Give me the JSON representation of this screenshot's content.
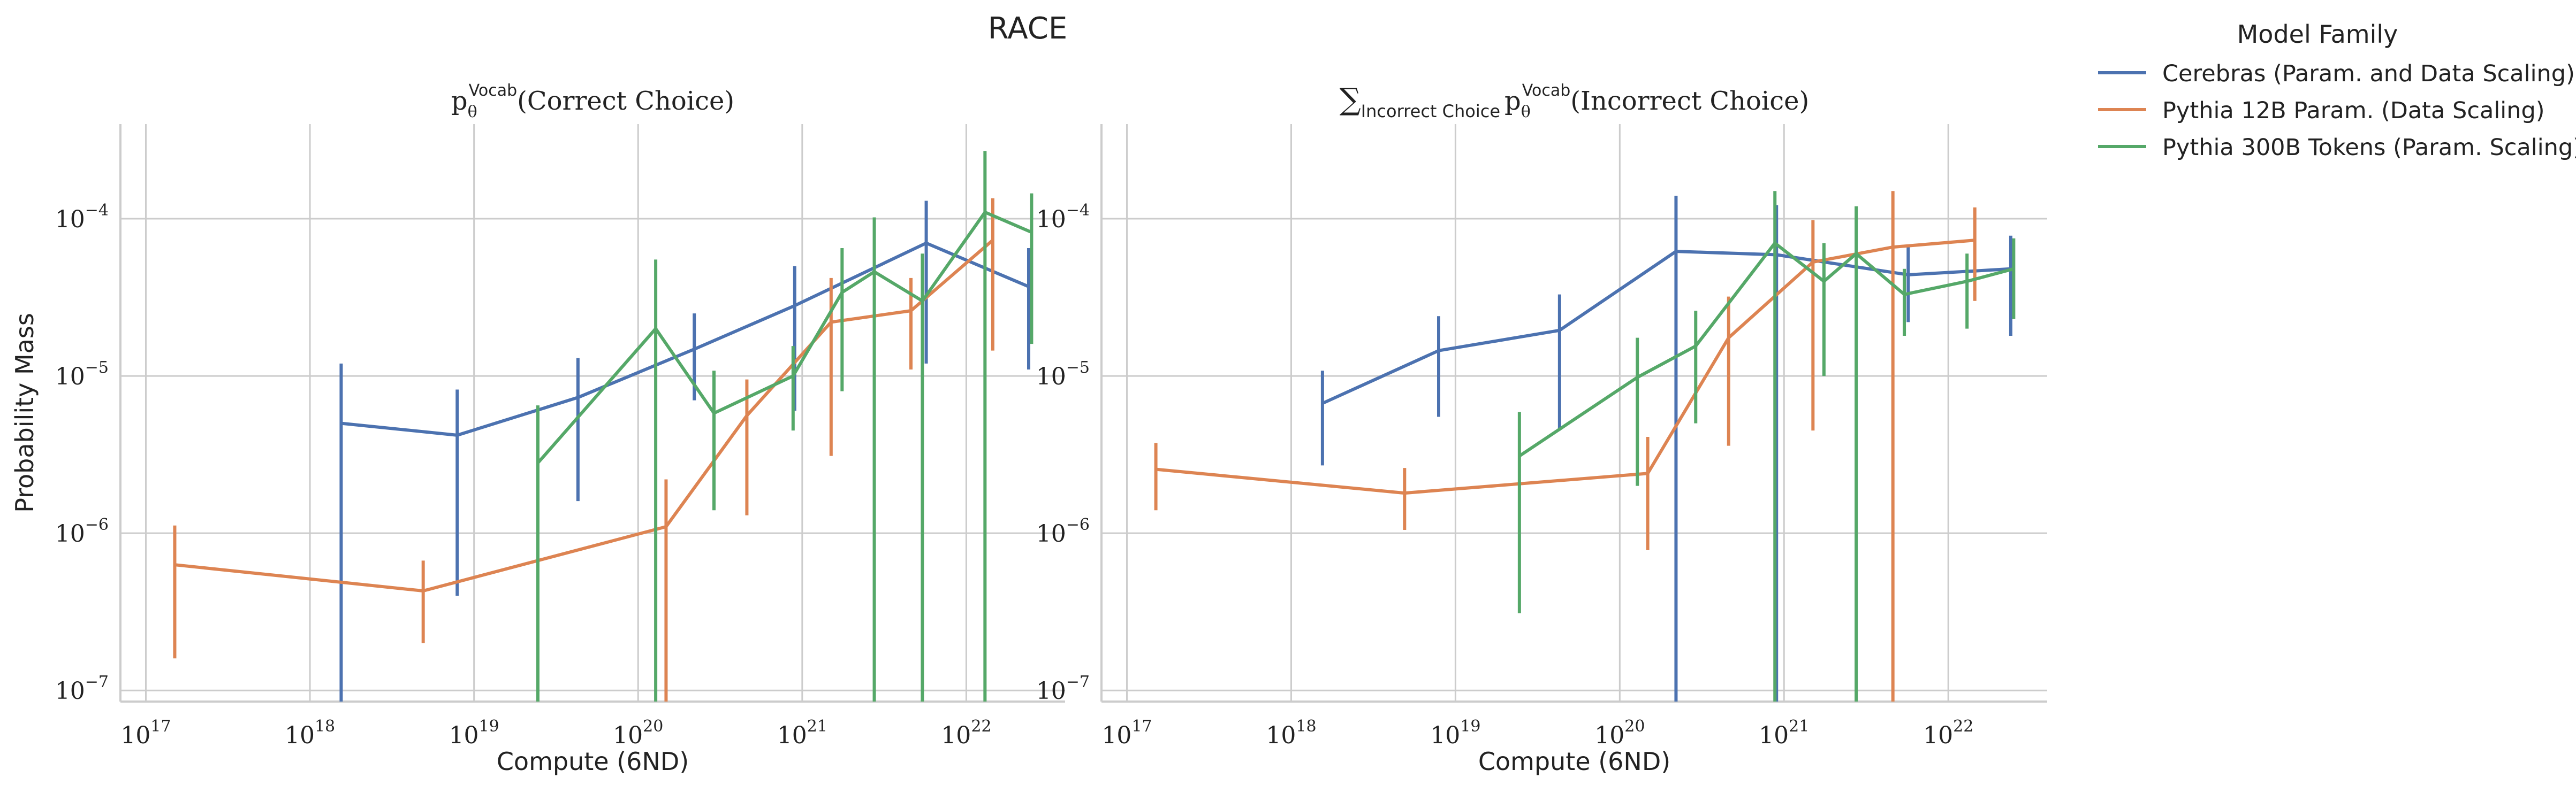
{
  "figure": {
    "title": "RACE"
  },
  "colors": {
    "Cerebras": "#4c72b0",
    "Pythia12B": "#dd8452",
    "Pythia300B": "#55a868",
    "grid": "#cccccc",
    "axis": "#444444"
  },
  "legend": {
    "title": "Model Family",
    "entries": [
      {
        "label": "Cerebras (Param. and Data Scaling)",
        "color": "#4c72b0"
      },
      {
        "label": "Pythia 12B Param. (Data Scaling)",
        "color": "#dd8452"
      },
      {
        "label": "Pythia 300B Tokens (Param. Scaling)",
        "color": "#55a868"
      }
    ]
  },
  "chart_data": [
    {
      "type": "line",
      "title_parts": {
        "p": "p",
        "sub": "θ",
        "sup": "Vocab",
        "arg": "(Correct Choice)"
      },
      "xlabel": "Compute (6ND)",
      "ylabel": "Probability Mass",
      "xscale": "log",
      "yscale": "log",
      "xlim": [
        7e+16,
        4e+22
      ],
      "ylim": [
        8.5e-08,
        0.0004
      ],
      "xticks": [
        {
          "exp": 17
        },
        {
          "exp": 18
        },
        {
          "exp": 19
        },
        {
          "exp": 20
        },
        {
          "exp": 21
        },
        {
          "exp": 22
        }
      ],
      "yticks": [
        {
          "exp": -7
        },
        {
          "exp": -6
        },
        {
          "exp": -5
        },
        {
          "exp": -4
        }
      ],
      "grid": true,
      "series": [
        {
          "name": "Cerebras (Param. and Data Scaling)",
          "color": "#4c72b0",
          "points": [
            {
              "x": 1.55e+18,
              "y": 5e-06,
              "lo": 8.5e-08,
              "hi": 1.2e-05
            },
            {
              "x": 7.9e+18,
              "y": 4.2e-06,
              "lo": 4e-07,
              "hi": 8.2e-06
            },
            {
              "x": 4.3e+19,
              "y": 7.3e-06,
              "lo": 1.6e-06,
              "hi": 1.3e-05
            },
            {
              "x": 2.2e+20,
              "y": 1.48e-05,
              "lo": 7e-06,
              "hi": 2.5e-05
            },
            {
              "x": 9e+20,
              "y": 2.8e-05,
              "lo": 6e-06,
              "hi": 5e-05
            },
            {
              "x": 5.7e+21,
              "y": 7e-05,
              "lo": 1.2e-05,
              "hi": 0.00013
            },
            {
              "x": 2.4e+22,
              "y": 3.7e-05,
              "lo": 1.1e-05,
              "hi": 6.5e-05
            }
          ]
        },
        {
          "name": "Pythia 12B Param. (Data Scaling)",
          "color": "#dd8452",
          "points": [
            {
              "x": 1.5e+17,
              "y": 6.3e-07,
              "lo": 1.6e-07,
              "hi": 1.12e-06
            },
            {
              "x": 4.9e+18,
              "y": 4.3e-07,
              "lo": 2e-07,
              "hi": 6.7e-07
            },
            {
              "x": 1.48e+20,
              "y": 1.1e-06,
              "lo": 8.5e-08,
              "hi": 2.2e-06
            },
            {
              "x": 4.6e+20,
              "y": 5.6e-06,
              "lo": 1.3e-06,
              "hi": 9.5e-06
            },
            {
              "x": 1.5e+21,
              "y": 2.2e-05,
              "lo": 3.1e-06,
              "hi": 4.2e-05
            },
            {
              "x": 4.6e+21,
              "y": 2.6e-05,
              "lo": 1.1e-05,
              "hi": 4.2e-05
            },
            {
              "x": 1.45e+22,
              "y": 7.3e-05,
              "lo": 1.45e-05,
              "hi": 0.000135
            }
          ]
        },
        {
          "name": "Pythia 300B Tokens (Param. Scaling)",
          "color": "#55a868",
          "points": [
            {
              "x": 2.45e+19,
              "y": 2.8e-06,
              "lo": 8.5e-08,
              "hi": 6.5e-06
            },
            {
              "x": 1.28e+20,
              "y": 2e-05,
              "lo": 8.5e-08,
              "hi": 5.5e-05
            },
            {
              "x": 2.9e+20,
              "y": 5.8e-06,
              "lo": 1.4e-06,
              "hi": 1.08e-05
            },
            {
              "x": 8.8e+20,
              "y": 1e-05,
              "lo": 4.5e-06,
              "hi": 1.55e-05
            },
            {
              "x": 1.75e+21,
              "y": 3.4e-05,
              "lo": 8e-06,
              "hi": 6.5e-05
            },
            {
              "x": 2.75e+21,
              "y": 4.6e-05,
              "lo": 8.5e-08,
              "hi": 0.000102
            },
            {
              "x": 5.4e+21,
              "y": 3e-05,
              "lo": 8.5e-08,
              "hi": 6e-05
            },
            {
              "x": 1.3e+22,
              "y": 0.00011,
              "lo": 8.5e-08,
              "hi": 0.00027
            },
            {
              "x": 2.5e+22,
              "y": 8.2e-05,
              "lo": 1.6e-05,
              "hi": 0.000145
            }
          ]
        }
      ]
    },
    {
      "type": "line",
      "title_parts": {
        "sum": "∑",
        "sum_sub": "Incorrect Choice",
        "p": "p",
        "sub": "θ",
        "sup": "Vocab",
        "arg": "(Incorrect Choice)"
      },
      "xlabel": "Compute (6ND)",
      "ylabel": "",
      "xscale": "log",
      "yscale": "log",
      "xlim": [
        7e+16,
        4e+22
      ],
      "ylim": [
        8.5e-08,
        0.0004
      ],
      "xticks": [
        {
          "exp": 17
        },
        {
          "exp": 18
        },
        {
          "exp": 19
        },
        {
          "exp": 20
        },
        {
          "exp": 21
        },
        {
          "exp": 22
        }
      ],
      "yticks": [
        {
          "exp": -7
        },
        {
          "exp": -6
        },
        {
          "exp": -5
        },
        {
          "exp": -4
        }
      ],
      "grid": true,
      "series": [
        {
          "name": "Cerebras (Param. and Data Scaling)",
          "color": "#4c72b0",
          "points": [
            {
              "x": 1.55e+18,
              "y": 6.7e-06,
              "lo": 2.7e-06,
              "hi": 1.08e-05
            },
            {
              "x": 7.9e+18,
              "y": 1.45e-05,
              "lo": 5.5e-06,
              "hi": 2.4e-05
            },
            {
              "x": 4.3e+19,
              "y": 1.95e-05,
              "lo": 4.5e-06,
              "hi": 3.3e-05
            },
            {
              "x": 2.2e+20,
              "y": 6.2e-05,
              "lo": 8.5e-08,
              "hi": 0.00014
            },
            {
              "x": 9e+20,
              "y": 5.9e-05,
              "lo": 8.5e-08,
              "hi": 0.000122
            },
            {
              "x": 5.7e+21,
              "y": 4.4e-05,
              "lo": 2.2e-05,
              "hi": 6.6e-05
            },
            {
              "x": 2.4e+22,
              "y": 4.8e-05,
              "lo": 1.8e-05,
              "hi": 7.8e-05
            }
          ]
        },
        {
          "name": "Pythia 12B Param. (Data Scaling)",
          "color": "#dd8452",
          "points": [
            {
              "x": 1.5e+17,
              "y": 2.55e-06,
              "lo": 1.4e-06,
              "hi": 3.75e-06
            },
            {
              "x": 4.9e+18,
              "y": 1.8e-06,
              "lo": 1.05e-06,
              "hi": 2.6e-06
            },
            {
              "x": 1.48e+20,
              "y": 2.4e-06,
              "lo": 7.8e-07,
              "hi": 4.1e-06
            },
            {
              "x": 4.6e+20,
              "y": 1.75e-05,
              "lo": 3.6e-06,
              "hi": 3.2e-05
            },
            {
              "x": 1.5e+21,
              "y": 5.3e-05,
              "lo": 4.5e-06,
              "hi": 9.8e-05
            },
            {
              "x": 4.6e+21,
              "y": 6.6e-05,
              "lo": 8.5e-08,
              "hi": 0.00015
            },
            {
              "x": 1.45e+22,
              "y": 7.3e-05,
              "lo": 3e-05,
              "hi": 0.000118
            }
          ]
        },
        {
          "name": "Pythia 300B Tokens (Param. Scaling)",
          "color": "#55a868",
          "points": [
            {
              "x": 2.45e+19,
              "y": 3.1e-06,
              "lo": 3.1e-07,
              "hi": 5.9e-06
            },
            {
              "x": 1.28e+20,
              "y": 9.8e-06,
              "lo": 2e-06,
              "hi": 1.75e-05
            },
            {
              "x": 2.9e+20,
              "y": 1.55e-05,
              "lo": 5e-06,
              "hi": 2.6e-05
            },
            {
              "x": 8.8e+20,
              "y": 7e-05,
              "lo": 8.5e-08,
              "hi": 0.00015
            },
            {
              "x": 1.75e+21,
              "y": 4e-05,
              "lo": 1e-05,
              "hi": 7e-05
            },
            {
              "x": 2.75e+21,
              "y": 6e-05,
              "lo": 8.5e-08,
              "hi": 0.00012
            },
            {
              "x": 5.4e+21,
              "y": 3.3e-05,
              "lo": 1.8e-05,
              "hi": 4.8e-05
            },
            {
              "x": 1.3e+22,
              "y": 4e-05,
              "lo": 2e-05,
              "hi": 6e-05
            },
            {
              "x": 2.5e+22,
              "y": 4.8e-05,
              "lo": 2.3e-05,
              "hi": 7.5e-05
            }
          ]
        }
      ]
    }
  ]
}
